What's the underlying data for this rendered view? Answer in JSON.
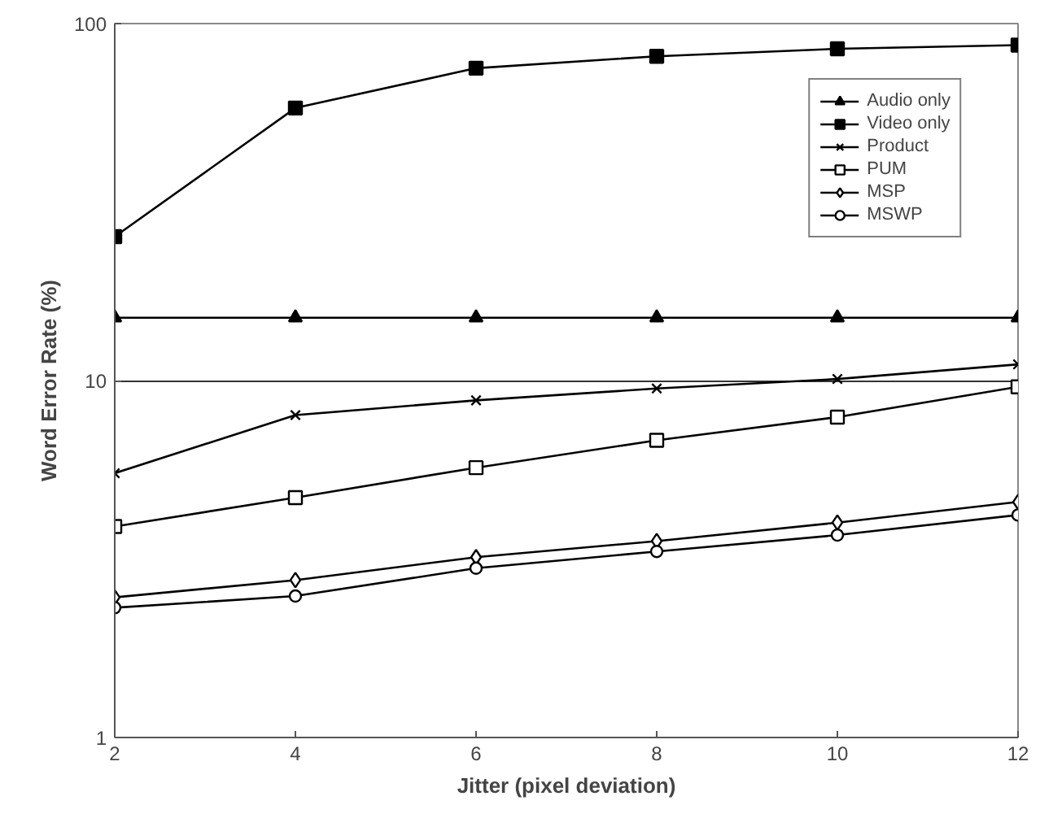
{
  "chart_data": {
    "type": "line",
    "xlabel": "Jitter (pixel deviation)",
    "ylabel": "Word Error Rate (%)",
    "x": [
      2,
      4,
      6,
      8,
      10,
      12
    ],
    "xlim": [
      2,
      12
    ],
    "xticks": [
      2,
      4,
      6,
      8,
      10,
      12
    ],
    "ylim": [
      1,
      100
    ],
    "yticks": [
      1,
      10,
      100
    ],
    "log": true,
    "grid": "y",
    "legend": "top right",
    "series": [
      {
        "name": "Audio only",
        "color": "#000000",
        "marker": "triangle",
        "values": [
          15,
          15,
          15,
          15,
          15,
          15
        ]
      },
      {
        "name": "Video only",
        "color": "#000000",
        "marker": "square",
        "values": [
          25.3,
          58,
          75,
          81,
          85,
          87
        ]
      },
      {
        "name": "Product",
        "color": "#000000",
        "marker": "cross",
        "values": [
          5.5,
          8.0,
          8.8,
          9.5,
          10.1,
          11.1
        ]
      },
      {
        "name": "PUM",
        "color": "#000000",
        "marker": "square",
        "values": [
          3.9,
          4.7,
          5.7,
          6.8,
          7.9,
          9.6
        ]
      },
      {
        "name": "MSP",
        "color": "#000000",
        "marker": "diamond",
        "values": [
          2.47,
          2.76,
          3.2,
          3.55,
          4.0,
          4.57
        ]
      },
      {
        "name": "MSWP",
        "color": "#000000",
        "marker": "circle",
        "values": [
          2.31,
          2.49,
          2.98,
          3.32,
          3.69,
          4.2
        ]
      }
    ]
  }
}
